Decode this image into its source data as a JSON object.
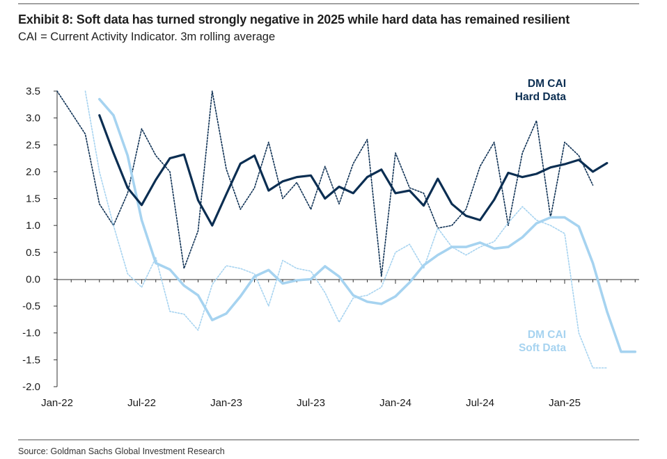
{
  "header": {
    "title": "Exhibit 8: Soft data has turned strongly negative in 2025 while hard data has remained resilient",
    "subtitle": "CAI = Current Activity Indicator. 3m rolling average"
  },
  "footer": {
    "source": "Source: Goldman Sachs Global Investment Research"
  },
  "colors": {
    "hard": "#0b2e52",
    "soft": "#a6d3f0",
    "axis": "#333333"
  },
  "chart_data": {
    "type": "line",
    "title": "Exhibit 8: Soft data has turned strongly negative in 2025 while hard data has remained resilient",
    "subtitle": "CAI = Current Activity Indicator. 3m rolling average",
    "xlabel": "",
    "ylabel": "",
    "ylim": [
      -2.0,
      3.5
    ],
    "yticks": [
      "3.5",
      "3.0",
      "2.5",
      "2.0",
      "1.5",
      "1.0",
      "0.5",
      "0.0",
      "-0.5",
      "-1.0",
      "-1.5",
      "-2.0"
    ],
    "xlim": [
      "2022-01",
      "2025-07"
    ],
    "xticks": [
      "Jan-22",
      "Jul-22",
      "Jan-23",
      "Jul-23",
      "Jan-24",
      "Jul-24",
      "Jan-25"
    ],
    "grid": false,
    "annotations": {
      "hard": [
        "DM CAI",
        "Hard Data"
      ],
      "soft": [
        "DM CAI",
        "Soft Data"
      ]
    },
    "series": [
      {
        "name": "DM CAI Hard Data",
        "style": "solid",
        "x": [
          "2022-04",
          "2022-05",
          "2022-06",
          "2022-07",
          "2022-08",
          "2022-09",
          "2022-10",
          "2022-11",
          "2022-12",
          "2023-01",
          "2023-02",
          "2023-03",
          "2023-04",
          "2023-05",
          "2023-06",
          "2023-07",
          "2023-08",
          "2023-09",
          "2023-10",
          "2023-11",
          "2023-12",
          "2024-01",
          "2024-02",
          "2024-03",
          "2024-04",
          "2024-05",
          "2024-06",
          "2024-07",
          "2024-08",
          "2024-09",
          "2024-10",
          "2024-11",
          "2024-12",
          "2025-01",
          "2025-02",
          "2025-03",
          "2025-04"
        ],
        "values": [
          3.05,
          2.35,
          1.7,
          1.38,
          1.85,
          2.25,
          2.32,
          1.47,
          1.0,
          1.58,
          2.15,
          2.3,
          1.65,
          1.82,
          1.9,
          1.93,
          1.5,
          1.72,
          1.6,
          1.9,
          2.04,
          1.6,
          1.65,
          1.37,
          1.87,
          1.4,
          1.18,
          1.1,
          1.48,
          1.98,
          1.9,
          1.96,
          2.08,
          2.14,
          2.22,
          2.0,
          2.16
        ]
      },
      {
        "name": "DM CAI Hard Data (monthly)",
        "style": "dotted",
        "x": [
          "2022-01",
          "2022-02",
          "2022-03",
          "2022-04",
          "2022-05",
          "2022-06",
          "2022-07",
          "2022-08",
          "2022-09",
          "2022-10",
          "2022-11",
          "2022-12",
          "2023-01",
          "2023-02",
          "2023-03",
          "2023-04",
          "2023-05",
          "2023-06",
          "2023-07",
          "2023-08",
          "2023-09",
          "2023-10",
          "2023-11",
          "2023-12",
          "2024-01",
          "2024-02",
          "2024-03",
          "2024-04",
          "2024-05",
          "2024-06",
          "2024-07",
          "2024-08",
          "2024-09",
          "2024-10",
          "2024-11",
          "2024-12",
          "2025-01",
          "2025-02",
          "2025-03"
        ],
        "values": [
          3.5,
          3.1,
          2.7,
          1.4,
          1.0,
          1.6,
          2.8,
          2.3,
          2.0,
          0.2,
          0.9,
          3.5,
          2.05,
          1.3,
          1.7,
          2.55,
          1.5,
          1.8,
          1.3,
          2.1,
          1.4,
          2.15,
          2.6,
          0.05,
          2.35,
          1.7,
          1.6,
          0.95,
          1.0,
          1.3,
          2.1,
          2.55,
          1.0,
          2.35,
          2.95,
          1.15,
          2.55,
          2.3,
          1.75
        ]
      },
      {
        "name": "DM CAI Soft Data",
        "style": "solid",
        "x": [
          "2022-04",
          "2022-05",
          "2022-06",
          "2022-07",
          "2022-08",
          "2022-09",
          "2022-10",
          "2022-11",
          "2022-12",
          "2023-01",
          "2023-02",
          "2023-03",
          "2023-04",
          "2023-05",
          "2023-06",
          "2023-07",
          "2023-08",
          "2023-09",
          "2023-10",
          "2023-11",
          "2023-12",
          "2024-01",
          "2024-02",
          "2024-03",
          "2024-04",
          "2024-05",
          "2024-06",
          "2024-07",
          "2024-08",
          "2024-09",
          "2024-10",
          "2024-11",
          "2024-12",
          "2025-01",
          "2025-02",
          "2025-03",
          "2025-04",
          "2025-05",
          "2025-06"
        ],
        "values": [
          3.35,
          3.05,
          2.3,
          1.1,
          0.3,
          0.18,
          -0.12,
          -0.3,
          -0.76,
          -0.64,
          -0.32,
          0.05,
          0.17,
          -0.08,
          -0.02,
          0.0,
          0.24,
          0.05,
          -0.3,
          -0.42,
          -0.46,
          -0.32,
          -0.06,
          0.26,
          0.45,
          0.6,
          0.6,
          0.68,
          0.57,
          0.6,
          0.78,
          1.04,
          1.15,
          1.15,
          0.98,
          0.3,
          -0.6,
          -1.35,
          -1.35
        ]
      },
      {
        "name": "DM CAI Soft Data (monthly)",
        "style": "dotted",
        "x": [
          "2022-03",
          "2022-04",
          "2022-05",
          "2022-06",
          "2022-07",
          "2022-08",
          "2022-09",
          "2022-10",
          "2022-11",
          "2022-12",
          "2023-01",
          "2023-02",
          "2023-03",
          "2023-04",
          "2023-05",
          "2023-06",
          "2023-07",
          "2023-08",
          "2023-09",
          "2023-10",
          "2023-11",
          "2023-12",
          "2024-01",
          "2024-02",
          "2024-03",
          "2024-04",
          "2024-05",
          "2024-06",
          "2024-07",
          "2024-08",
          "2024-09",
          "2024-10",
          "2024-11",
          "2024-12",
          "2025-01",
          "2025-02",
          "2025-03",
          "2025-04"
        ],
        "values": [
          3.5,
          2.0,
          1.0,
          0.1,
          -0.15,
          0.4,
          -0.6,
          -0.65,
          -0.95,
          -0.1,
          0.25,
          0.2,
          0.1,
          -0.5,
          0.35,
          0.2,
          0.15,
          -0.25,
          -0.8,
          -0.35,
          -0.3,
          -0.15,
          0.5,
          0.65,
          0.2,
          0.95,
          0.6,
          0.45,
          0.6,
          0.7,
          1.05,
          1.35,
          1.1,
          1.0,
          0.85,
          -1.0,
          -1.65,
          -1.65
        ]
      }
    ]
  }
}
